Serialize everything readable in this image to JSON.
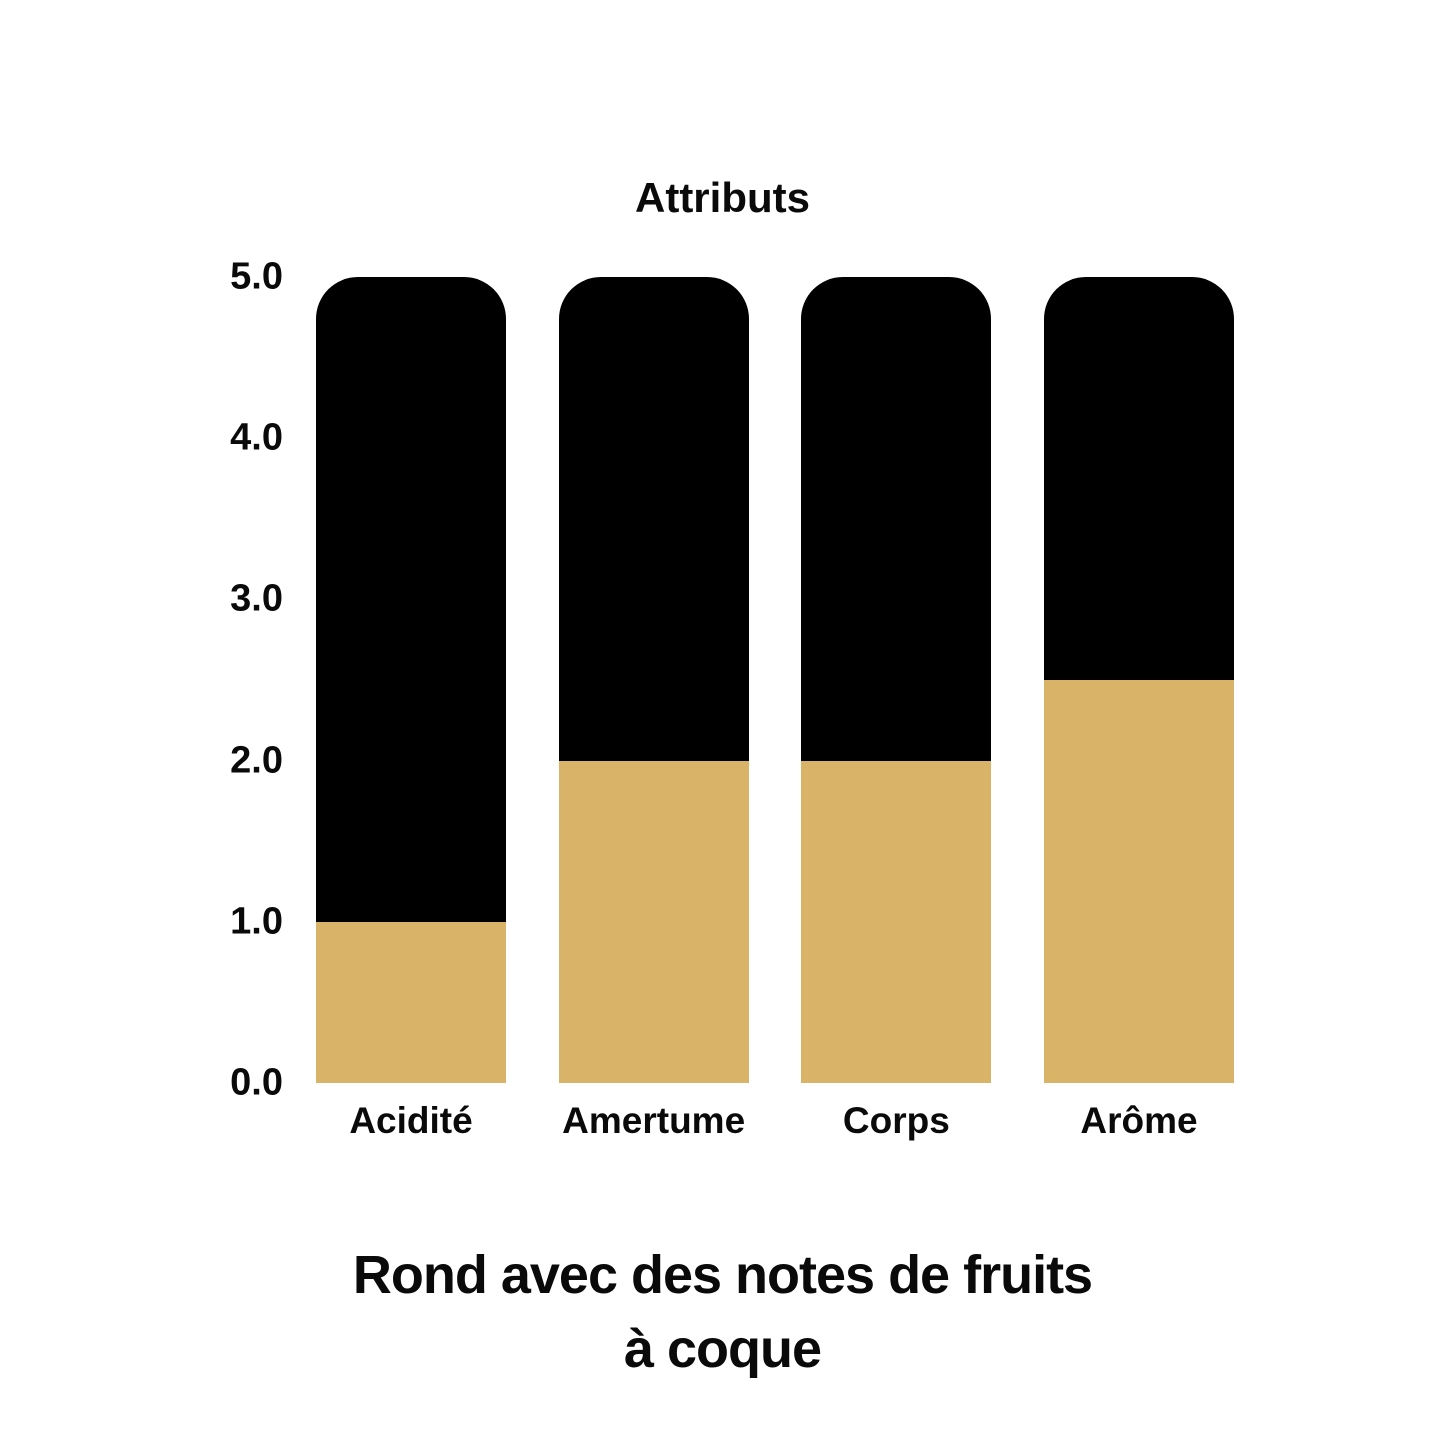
{
  "chart": {
    "colors": {
      "filled": "#D9B468",
      "remainder": "#000000",
      "text": "#0a0a0a",
      "background": "#ffffff"
    }
  },
  "chart_data": {
    "type": "bar",
    "subtype": "stacked-fill-to-max",
    "title": "Attributs",
    "categories": [
      "Acidité",
      "Amertume",
      "Corps",
      "Arôme"
    ],
    "values": [
      1.0,
      2.0,
      2.0,
      2.5
    ],
    "series": [
      {
        "name": "score",
        "color": "#D9B468",
        "values": [
          1.0,
          2.0,
          2.0,
          2.5
        ]
      },
      {
        "name": "remainder",
        "color": "#000000",
        "values": [
          4.0,
          3.0,
          3.0,
          2.5
        ]
      }
    ],
    "xlabel": "",
    "ylabel": "",
    "ylim": [
      0.0,
      5.0
    ],
    "yticks": [
      "5.0",
      "4.0",
      "3.0",
      "2.0",
      "1.0",
      "0.0"
    ],
    "grid": false,
    "legend": false
  },
  "caption": {
    "line1": "Rond avec des notes de fruits",
    "line2": "à coque"
  }
}
